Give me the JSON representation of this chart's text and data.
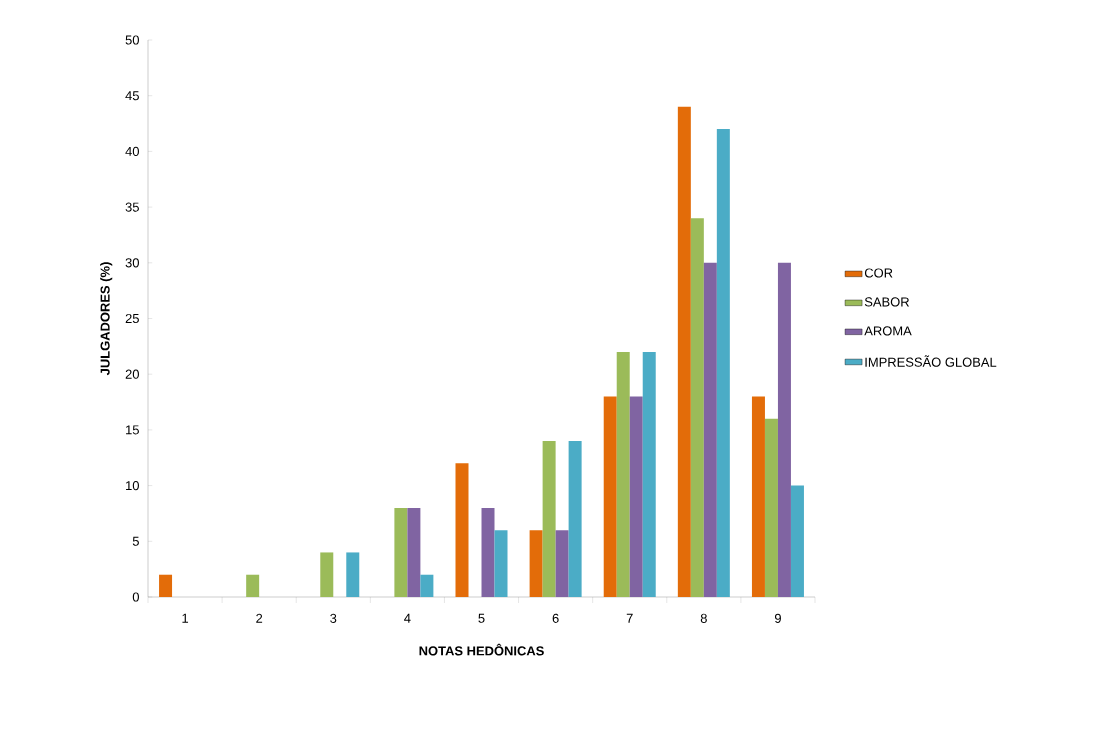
{
  "chart_data": {
    "type": "bar",
    "xlabel": "NOTAS HEDÔNICAS",
    "ylabel": "JULGADORES (%)",
    "categories": [
      "1",
      "2",
      "3",
      "4",
      "5",
      "6",
      "7",
      "8",
      "9"
    ],
    "series": [
      {
        "name": "COR",
        "color": "#e36c09",
        "values": [
          2,
          0,
          0,
          0,
          12,
          6,
          18,
          44,
          18
        ]
      },
      {
        "name": "SABOR",
        "color": "#9bbb59",
        "values": [
          0,
          2,
          4,
          8,
          0,
          14,
          22,
          34,
          16
        ]
      },
      {
        "name": "AROMA",
        "color": "#8064a2",
        "values": [
          0,
          0,
          0,
          8,
          8,
          6,
          18,
          30,
          30
        ]
      },
      {
        "name": "IMPRESSÃO GLOBAL",
        "color": "#4bacc6",
        "values": [
          0,
          0,
          4,
          2,
          6,
          14,
          22,
          42,
          10
        ]
      }
    ],
    "ylim": [
      0,
      50
    ],
    "yticks": [
      0,
      5,
      10,
      15,
      20,
      25,
      30,
      35,
      40,
      45,
      50
    ],
    "legend": "right"
  }
}
